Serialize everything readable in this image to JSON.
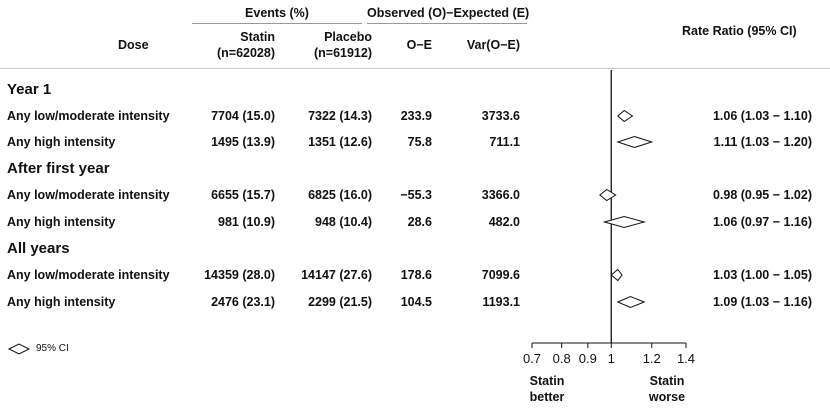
{
  "header": {
    "events": "Events (%)",
    "observed": "Observed (O)−Expected (E)",
    "rate_ratio": "Rate Ratio (95% CI)",
    "dose": "Dose",
    "statin": "Statin",
    "statin_n": "(n=62028)",
    "placebo": "Placebo",
    "placebo_n": "(n=61912)",
    "oe": "O−E",
    "var": "Var(O−E)"
  },
  "sections": [
    {
      "title": "Year 1",
      "rows": [
        {
          "dose": "Any low/moderate intensity",
          "statin": "7704 (15.0)",
          "placebo": "7322 (14.3)",
          "oe": "233.9",
          "var": "3733.6",
          "rr_text": "1.06 (1.03 − 1.10)"
        },
        {
          "dose": "Any high intensity",
          "statin": "1495 (13.9)",
          "placebo": "1351 (12.6)",
          "oe": "75.8",
          "var": "711.1",
          "rr_text": "1.11 (1.03 − 1.20)"
        }
      ]
    },
    {
      "title": "After first year",
      "rows": [
        {
          "dose": "Any low/moderate intensity",
          "statin": "6655 (15.7)",
          "placebo": "6825 (16.0)",
          "oe": "−55.3",
          "var": "3366.0",
          "rr_text": "0.98 (0.95 − 1.02)"
        },
        {
          "dose": "Any high intensity",
          "statin": "981 (10.9)",
          "placebo": "948 (10.4)",
          "oe": "28.6",
          "var": "482.0",
          "rr_text": "1.06 (0.97 − 1.16)"
        }
      ]
    },
    {
      "title": "All years",
      "rows": [
        {
          "dose": "Any low/moderate intensity",
          "statin": "14359 (28.0)",
          "placebo": "14147 (27.6)",
          "oe": "178.6",
          "var": "7099.6",
          "rr_text": "1.03 (1.00 − 1.05)"
        },
        {
          "dose": "Any high intensity",
          "statin": "2476 (23.1)",
          "placebo": "2299 (21.5)",
          "oe": "104.5",
          "var": "1193.1",
          "rr_text": "1.09 (1.03 − 1.16)"
        }
      ]
    }
  ],
  "legend": {
    "label": "95% CI"
  },
  "axis": {
    "better": [
      "Statin",
      "better"
    ],
    "worse": [
      "Statin",
      "worse"
    ]
  },
  "chart_data": {
    "type": "forest",
    "xscale": "log",
    "xlim": [
      0.7,
      1.4
    ],
    "xticks": [
      0.7,
      0.8,
      0.9,
      1,
      1.2,
      1.4
    ],
    "xtick_labels": [
      "0.7",
      "0.8",
      "0.9",
      "1",
      "1.2",
      "1.4"
    ],
    "reference_line": 1,
    "estimates": [
      {
        "point": 1.06,
        "lower": 1.03,
        "upper": 1.1
      },
      {
        "point": 1.11,
        "lower": 1.03,
        "upper": 1.2
      },
      {
        "point": 0.98,
        "lower": 0.95,
        "upper": 1.02
      },
      {
        "point": 1.06,
        "lower": 0.97,
        "upper": 1.16
      },
      {
        "point": 1.03,
        "lower": 1.0,
        "upper": 1.05
      },
      {
        "point": 1.09,
        "lower": 1.03,
        "upper": 1.16
      }
    ]
  }
}
